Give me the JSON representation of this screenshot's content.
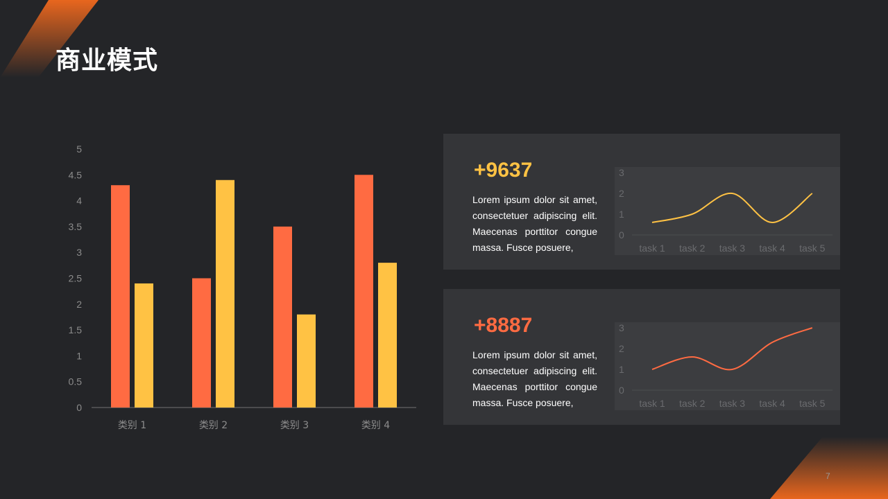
{
  "slide": {
    "title": "商业模式",
    "page_number": "7",
    "colors": {
      "background": "#242528",
      "orange": "#ff6b42",
      "yellow": "#ffc244",
      "card": "#343538"
    }
  },
  "chart_data": [
    {
      "type": "bar",
      "categories": [
        "类别 1",
        "类别 2",
        "类别 3",
        "类别 4"
      ],
      "series": [
        {
          "values": [
            4.3,
            2.5,
            3.5,
            4.5
          ],
          "color": "#ff6b42"
        },
        {
          "values": [
            2.4,
            4.4,
            1.8,
            2.8
          ],
          "color": "#ffc244"
        }
      ],
      "ylim": [
        0,
        5
      ],
      "yticks": [
        "0",
        "0.5",
        "1",
        "1.5",
        "2",
        "2.5",
        "3",
        "3.5",
        "4",
        "4.5",
        "5"
      ],
      "grid": false
    },
    {
      "type": "line",
      "categories": [
        "task 1",
        "task 2",
        "task 3",
        "task 4",
        "task 5"
      ],
      "series": [
        {
          "values": [
            0.6,
            1.0,
            2.0,
            0.6,
            2.0
          ],
          "color": "#ffc244"
        }
      ],
      "ylim": [
        0,
        3
      ],
      "yticks": [
        "0",
        "1",
        "2",
        "3"
      ]
    },
    {
      "type": "line",
      "categories": [
        "task 1",
        "task 2",
        "task 3",
        "task 4",
        "task 5"
      ],
      "series": [
        {
          "values": [
            1.0,
            1.6,
            1.0,
            2.3,
            3.0
          ],
          "color": "#ff6b42"
        }
      ],
      "ylim": [
        0,
        3
      ],
      "yticks": [
        "0",
        "1",
        "2",
        "3"
      ]
    }
  ],
  "cards": [
    {
      "stat": "+9637",
      "stat_color": "#ffc244",
      "text": "Lorem ipsum dolor sit amet, consectetuer adipiscing elit. Maecenas porttitor congue massa. Fusce posuere,"
    },
    {
      "stat": "+8887",
      "stat_color": "#ff6b42",
      "text": "Lorem ipsum dolor sit amet, consectetuer adipiscing elit. Maecenas porttitor congue massa. Fusce posuere,"
    }
  ]
}
